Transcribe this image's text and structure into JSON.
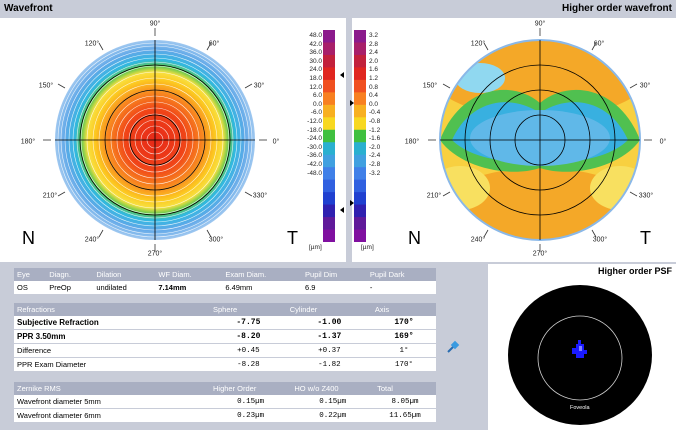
{
  "panels": {
    "wavefront_title": "Wavefront",
    "hot_title": "Higher order wavefront",
    "psf_title": "Higher order PSF",
    "psf_label": "Foveola"
  },
  "axis_labels": {
    "deg90": "90°",
    "deg60": "60°",
    "deg30": "30°",
    "deg0": "0°",
    "deg330": "330°",
    "deg300": "300°",
    "deg270": "270°",
    "deg240": "240°",
    "deg210": "210°",
    "deg180": "180°",
    "deg150": "150°",
    "deg120": "120°",
    "nasal": "N",
    "temporal": "T"
  },
  "scale_left": [
    "48.0",
    "42.0",
    "36.0",
    "30.0",
    "24.0",
    "18.0",
    "12.0",
    "6.0",
    "0.0",
    "-6.0",
    "-12.0",
    "-18.0",
    "-24.0",
    "-30.0",
    "-36.0",
    "-42.0",
    "-48.0"
  ],
  "scale_right": [
    "3.2",
    "2.8",
    "2.4",
    "2.0",
    "1.6",
    "1.2",
    "0.8",
    "0.4",
    "0.0",
    "-0.4",
    "-0.8",
    "-1.2",
    "-1.6",
    "-2.0",
    "-2.4",
    "-2.8",
    "-3.2"
  ],
  "scale_unit": "[µm]",
  "colors": {
    "scale": [
      "#8b1a8c",
      "#a81f6a",
      "#c2213c",
      "#e02620",
      "#f05020",
      "#f88020",
      "#f8b020",
      "#f8d820",
      "#40c040",
      "#2ab0d0",
      "#40a0e0",
      "#4080e8",
      "#3060e0",
      "#2040d0",
      "#3020b0",
      "#601a9a",
      "#8010a0"
    ]
  },
  "info_table": {
    "headers": [
      "Eye",
      "Diagn.",
      "Dilation",
      "WF Diam.",
      "Exam Diam.",
      "Pupil Dim",
      "Pupil Dark"
    ],
    "values": [
      "OS",
      "PreOp",
      "undilated",
      "7.14mm",
      "6.49mm",
      "6.9",
      "-"
    ]
  },
  "refraction_table": {
    "headers": [
      "Refractions",
      "Sphere",
      "Cylinder",
      "Axis"
    ],
    "rows": [
      {
        "label": "Subjective Refraction",
        "sphere": "-7.75",
        "cylinder": "-1.00",
        "axis": "170°"
      },
      {
        "label": "PPR 3.50mm",
        "sphere": "-8.20",
        "cylinder": "-1.37",
        "axis": "169°"
      },
      {
        "label": "Difference",
        "sphere": "+0.45",
        "cylinder": "+0.37",
        "axis": "1°"
      },
      {
        "label": "PPR Exam Diameter",
        "sphere": "-8.28",
        "cylinder": "-1.82",
        "axis": "170°"
      }
    ]
  },
  "rms_table": {
    "headers": [
      "Zernike RMS",
      "Higher Order",
      "HO w/o Z400",
      "Total"
    ],
    "rows": [
      {
        "label": "Wavefront diameter 5mm",
        "ho": "0.15µm",
        "ho_wo": "0.15µm",
        "total": "8.05µm"
      },
      {
        "label": "Wavefront diameter 6mm",
        "ho": "0.23µm",
        "ho_wo": "0.22µm",
        "total": "11.65µm"
      }
    ]
  }
}
